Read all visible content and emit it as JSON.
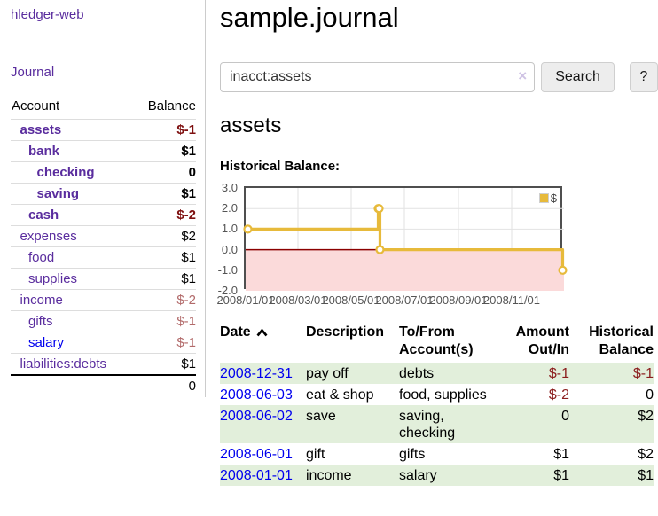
{
  "colors": {
    "purple": "#5a2d9e",
    "blue": "#0000ee",
    "negative": "#7e1010",
    "negative_muted": "#b26a6a",
    "txn_negative": "#8b1d1d",
    "row_green": "#e2efdb",
    "row_border": "#dddddd",
    "chart_line": "#e7ba3b",
    "chart_zero_line": "#8b0000",
    "chart_negative_zone": "#fbdada",
    "chart_grid": "#e2e2e2",
    "chart_border": "#4f4f4f",
    "axis_text": "#545454"
  },
  "sidebar": {
    "app_title": "hledger-web",
    "journal_label": "Journal",
    "accounts_header": {
      "account": "Account",
      "balance": "Balance"
    },
    "accounts": [
      {
        "name": "assets",
        "indent": 1,
        "bold": true,
        "balance": "$-1",
        "neg": "strong",
        "blue": false
      },
      {
        "name": "bank",
        "indent": 2,
        "bold": true,
        "balance": "$1",
        "neg": null,
        "blue": false
      },
      {
        "name": "checking",
        "indent": 3,
        "bold": true,
        "balance": "0",
        "neg": null,
        "blue": false
      },
      {
        "name": "saving",
        "indent": 3,
        "bold": true,
        "balance": "$1",
        "neg": null,
        "blue": false
      },
      {
        "name": "cash",
        "indent": 2,
        "bold": true,
        "balance": "$-2",
        "neg": "strong",
        "blue": false
      },
      {
        "name": "expenses",
        "indent": 1,
        "bold": false,
        "balance": "$2",
        "neg": null,
        "blue": false
      },
      {
        "name": "food",
        "indent": 2,
        "bold": false,
        "balance": "$1",
        "neg": null,
        "blue": false
      },
      {
        "name": "supplies",
        "indent": 2,
        "bold": false,
        "balance": "$1",
        "neg": null,
        "blue": false
      },
      {
        "name": "income",
        "indent": 1,
        "bold": false,
        "balance": "$-2",
        "neg": "muted",
        "blue": false
      },
      {
        "name": "gifts",
        "indent": 2,
        "bold": false,
        "balance": "$-1",
        "neg": "muted",
        "blue": false
      },
      {
        "name": "salary",
        "indent": 2,
        "bold": false,
        "balance": "$-1",
        "neg": "muted",
        "blue": true
      },
      {
        "name": "liabilities:debts",
        "indent": 1,
        "bold": false,
        "balance": "$1",
        "neg": null,
        "blue": false
      }
    ],
    "total": "0"
  },
  "main": {
    "title": "sample.journal",
    "search": {
      "value": "inacct:assets",
      "clear_icon": "×",
      "button_label": "Search",
      "help_label": "?"
    },
    "account_heading": "assets",
    "chart_title": "Historical Balance:",
    "table": {
      "columns": [
        "Date",
        "Description",
        "To/From Account(s)",
        "Amount Out/In",
        "Historical Balance"
      ],
      "rows": [
        {
          "date": "2008-12-31",
          "description": "pay off",
          "accounts": "debts",
          "amount": "$-1",
          "amount_neg": true,
          "balance": "$-1",
          "balance_neg": true
        },
        {
          "date": "2008-06-03",
          "description": "eat & shop",
          "accounts": "food, supplies",
          "amount": "$-2",
          "amount_neg": true,
          "balance": "0",
          "balance_neg": false
        },
        {
          "date": "2008-06-02",
          "description": "save",
          "accounts": "saving, checking",
          "amount": "0",
          "amount_neg": false,
          "balance": "$2",
          "balance_neg": false
        },
        {
          "date": "2008-06-01",
          "description": "gift",
          "accounts": "gifts",
          "amount": "$1",
          "amount_neg": false,
          "balance": "$2",
          "balance_neg": false
        },
        {
          "date": "2008-01-01",
          "description": "income",
          "accounts": "salary",
          "amount": "$1",
          "amount_neg": false,
          "balance": "$1",
          "balance_neg": false
        }
      ]
    }
  },
  "chart_data": {
    "type": "line",
    "title": "Historical Balance:",
    "steps": true,
    "series": [
      {
        "name": "$",
        "points": [
          [
            "2008-01-01",
            1
          ],
          [
            "2008-06-01",
            2
          ],
          [
            "2008-06-02",
            2
          ],
          [
            "2008-06-03",
            0
          ],
          [
            "2008-12-31",
            -1
          ]
        ]
      }
    ],
    "xlim": [
      "2008-01-01",
      "2008-12-31"
    ],
    "ylim": [
      -2,
      3
    ],
    "yticks": [
      {
        "value": 3,
        "label": "3.0"
      },
      {
        "value": 2,
        "label": "2.0"
      },
      {
        "value": 1,
        "label": "1.0"
      },
      {
        "value": 0,
        "label": "0.0"
      },
      {
        "value": -1,
        "label": "-1.0"
      },
      {
        "value": -2,
        "label": "-2.0"
      }
    ],
    "xticks": [
      {
        "date": "2008-01-01",
        "label": "2008/01/01"
      },
      {
        "date": "2008-03-01",
        "label": "2008/03/01"
      },
      {
        "date": "2008-05-01",
        "label": "2008/05/01"
      },
      {
        "date": "2008-07-01",
        "label": "2008/07/01"
      },
      {
        "date": "2008-09-01",
        "label": "2008/09/01"
      },
      {
        "date": "2008-11-01",
        "label": "2008/11/01"
      }
    ],
    "legend": {
      "label": "$",
      "position": "top-right"
    },
    "grid": true,
    "negative_zone_shaded": true,
    "zero_line": true
  }
}
